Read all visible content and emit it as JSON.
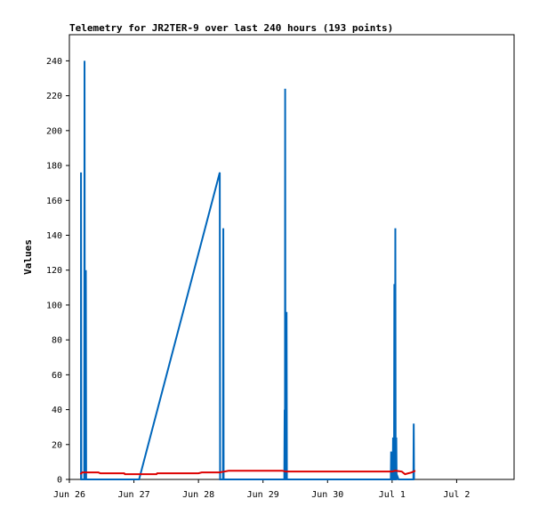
{
  "chart_data": {
    "type": "line",
    "title": "Telemetry for JR2TER-9 over last 240 hours (193 points)",
    "xlabel": "",
    "ylabel": "Values",
    "ylim": [
      0,
      255
    ],
    "xlim": [
      0,
      6.89
    ],
    "grid": false,
    "legend": "none",
    "x_tick_positions": [
      0,
      1,
      2,
      3,
      4,
      5,
      6
    ],
    "x_tick_labels": [
      "Jun 26",
      "Jun 27",
      "Jun 28",
      "Jun 29",
      "Jun 30",
      "Jul 1",
      "Jul 2"
    ],
    "y_ticks": [
      0,
      20,
      40,
      60,
      80,
      100,
      120,
      140,
      160,
      180,
      200,
      220,
      240
    ],
    "series": [
      {
        "color": "#0066bb",
        "points": [
          [
            0.17,
            0
          ],
          [
            0.18,
            0
          ],
          [
            0.18,
            176
          ],
          [
            0.185,
            0
          ],
          [
            0.23,
            0
          ],
          [
            0.235,
            240
          ],
          [
            0.24,
            0
          ],
          [
            0.25,
            0
          ],
          [
            0.255,
            120
          ],
          [
            0.26,
            0
          ],
          [
            1.08,
            0
          ],
          [
            2.33,
            176
          ],
          [
            2.335,
            0
          ],
          [
            2.38,
            0
          ],
          [
            2.385,
            144
          ],
          [
            2.39,
            0
          ],
          [
            3.33,
            0
          ],
          [
            3.335,
            40
          ],
          [
            3.34,
            0
          ],
          [
            3.343,
            224
          ],
          [
            3.348,
            0
          ],
          [
            3.36,
            0
          ],
          [
            3.365,
            96
          ],
          [
            3.37,
            0
          ],
          [
            4.98,
            0
          ],
          [
            4.985,
            16
          ],
          [
            4.99,
            0
          ],
          [
            5.01,
            0
          ],
          [
            5.015,
            24
          ],
          [
            5.02,
            0
          ],
          [
            5.03,
            0
          ],
          [
            5.035,
            112
          ],
          [
            5.04,
            0
          ],
          [
            5.045,
            0
          ],
          [
            5.05,
            144
          ],
          [
            5.055,
            0
          ],
          [
            5.06,
            0
          ],
          [
            5.065,
            24
          ],
          [
            5.07,
            0
          ],
          [
            5.08,
            2
          ],
          [
            5.1,
            0
          ],
          [
            5.33,
            0
          ],
          [
            5.335,
            32
          ],
          [
            5.34,
            0
          ]
        ]
      },
      {
        "color": "#dd0000",
        "points": [
          [
            0.17,
            3
          ],
          [
            0.2,
            4
          ],
          [
            0.45,
            4
          ],
          [
            0.48,
            3.5
          ],
          [
            0.85,
            3.5
          ],
          [
            0.86,
            3
          ],
          [
            1.35,
            3
          ],
          [
            1.36,
            3.5
          ],
          [
            2.0,
            3.5
          ],
          [
            2.05,
            4
          ],
          [
            2.33,
            4
          ],
          [
            2.35,
            4.2
          ],
          [
            2.4,
            4.5
          ],
          [
            2.47,
            5
          ],
          [
            3.3,
            5
          ],
          [
            3.35,
            4.5
          ],
          [
            4.0,
            4.5
          ],
          [
            5.0,
            4.5
          ],
          [
            5.05,
            5
          ],
          [
            5.15,
            4.5
          ],
          [
            5.2,
            3
          ],
          [
            5.25,
            3.5
          ],
          [
            5.3,
            4
          ],
          [
            5.36,
            5
          ]
        ]
      }
    ]
  }
}
